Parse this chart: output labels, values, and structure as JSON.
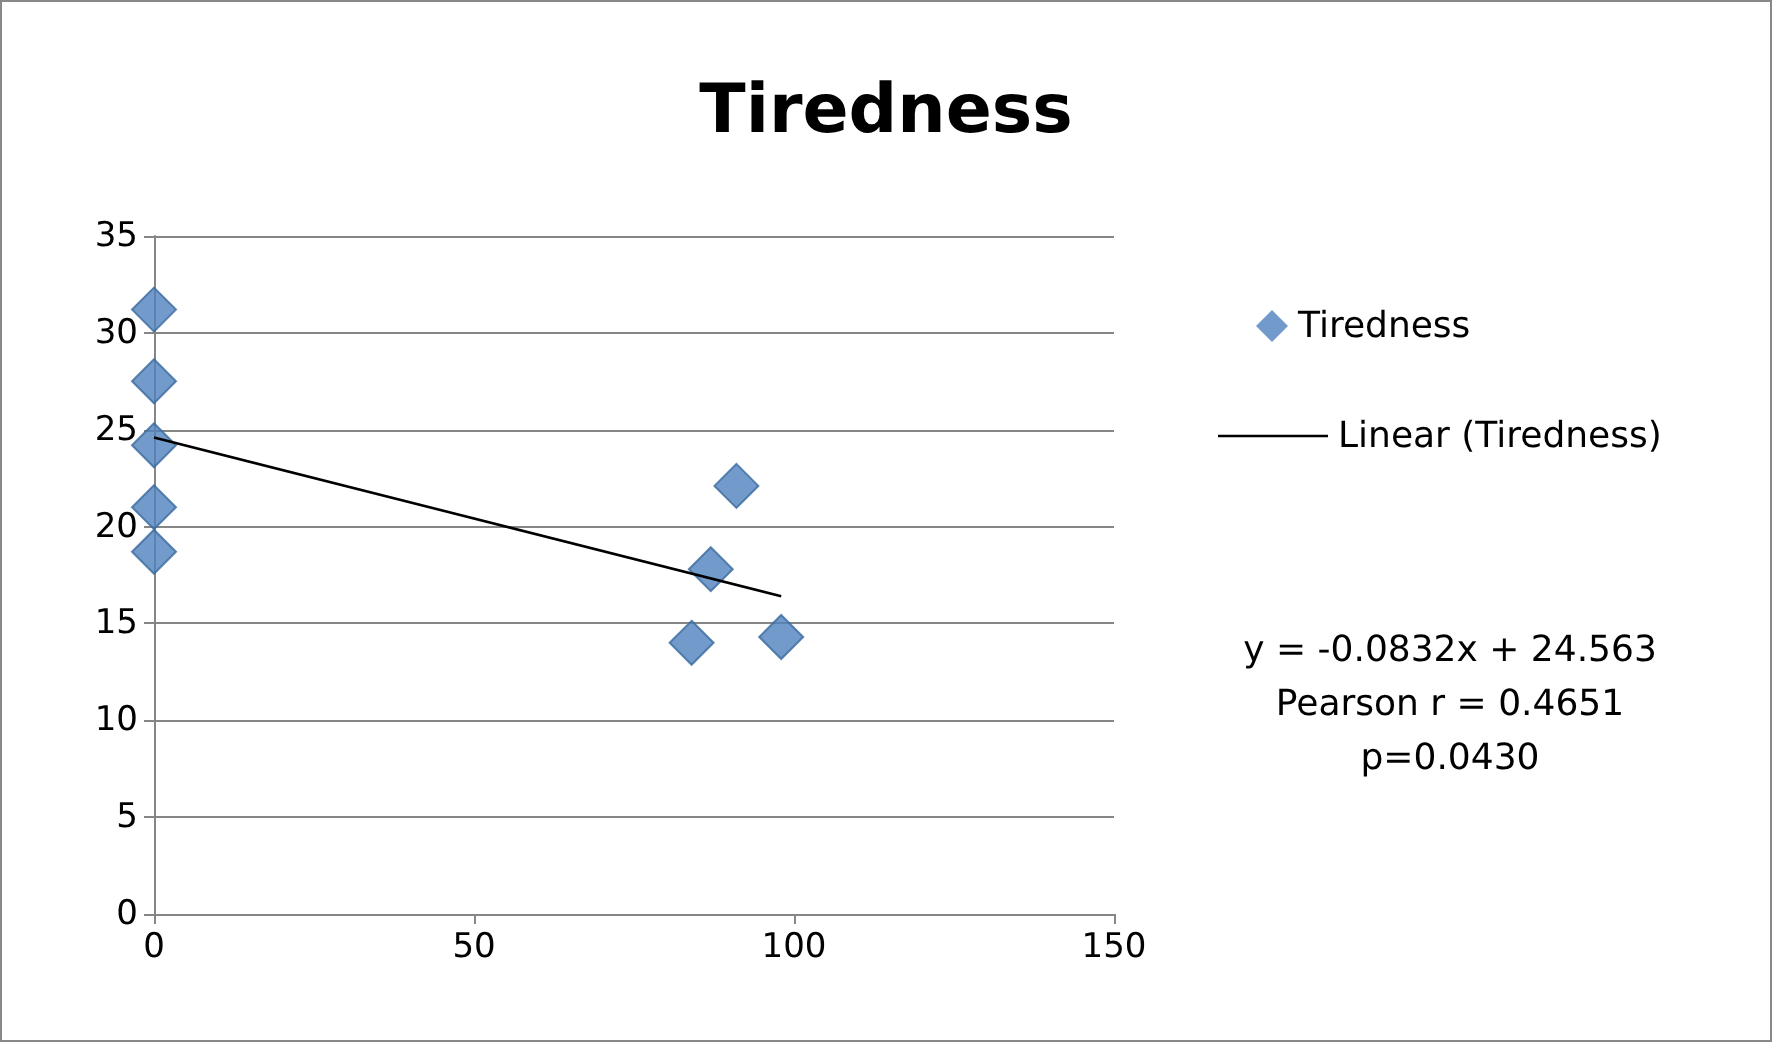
{
  "chart_data": {
    "type": "scatter",
    "title": "Tiredness",
    "series": [
      {
        "name": "Tiredness",
        "type": "scatter",
        "color": "#4f81bd",
        "x": [
          0,
          0,
          0,
          0,
          0,
          84,
          87,
          91,
          98
        ],
        "values": [
          31.2,
          27.5,
          24.2,
          21,
          18.7,
          14,
          17.8,
          22.1,
          14.3
        ]
      },
      {
        "name": "Linear (Tiredness)",
        "type": "line",
        "color": "#000000",
        "x": [
          0,
          98
        ],
        "values": [
          24.6,
          16.4
        ],
        "marker": "none"
      }
    ],
    "xlim": [
      0,
      150
    ],
    "xticks": [
      0,
      50,
      100,
      150
    ],
    "ylim": [
      0,
      35
    ],
    "yticks": [
      0,
      5,
      10,
      15,
      20,
      25,
      30,
      35
    ],
    "grid": "y",
    "legend": "right",
    "marker": "diamond",
    "annotations": [
      "y = -0.0832x + 24.563",
      "Pearson r = 0.4651",
      "p=0.0430"
    ]
  }
}
